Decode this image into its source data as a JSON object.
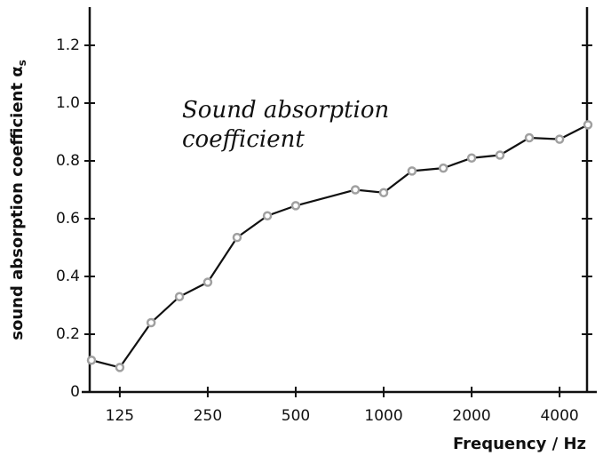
{
  "chart_data": {
    "type": "line",
    "ylabel": "sound absorption coefficient α",
    "ylabel_subscript": "s",
    "xlabel": "Frequency / Hz",
    "annotation": [
      "Sound absorption",
      "coefficient"
    ],
    "x": [
      100,
      125,
      160,
      200,
      250,
      315,
      400,
      500,
      800,
      1000,
      1250,
      1600,
      2000,
      2500,
      3150,
      4000,
      5000
    ],
    "series": [
      {
        "name": "sound absorption coefficient",
        "color": "#111111",
        "marker_color": "#a0a0a0",
        "values": [
          0.11,
          0.085,
          0.24,
          0.33,
          0.38,
          0.535,
          0.61,
          0.645,
          0.7,
          0.69,
          0.765,
          0.775,
          0.81,
          0.82,
          0.88,
          0.875,
          0.925
        ]
      }
    ],
    "xscale": "log",
    "xlim": [
      100,
      5000
    ],
    "xticks": [
      125,
      250,
      500,
      1000,
      2000,
      4000
    ],
    "ylim": [
      0,
      1.3
    ],
    "yticks": [
      0,
      0.2,
      0.4,
      0.6,
      0.8,
      {
        "value": 1.0,
        "label": "1.0"
      },
      1.2
    ],
    "grid": false
  }
}
